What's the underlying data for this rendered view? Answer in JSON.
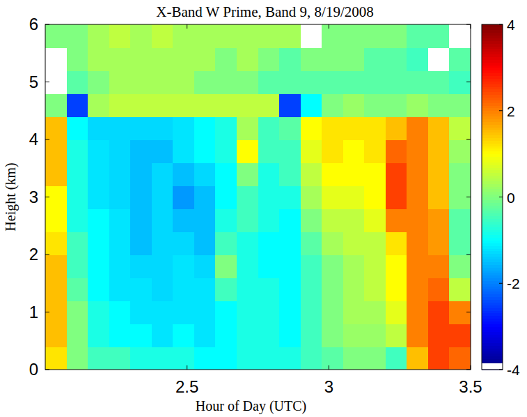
{
  "chart_data": {
    "type": "heatmap",
    "title": "X-Band W Prime, Band 9, 8/19/2008",
    "x_label": "Hour of Day (UTC)",
    "y_label": "Height (km)",
    "xlim": [
      2.0,
      3.5
    ],
    "ylim": [
      0,
      6
    ],
    "xticks": [
      2.5,
      3,
      3.5
    ],
    "yticks": [
      0,
      1,
      2,
      3,
      4,
      5,
      6
    ],
    "colorbar": {
      "range": [
        -4,
        4
      ],
      "ticks": [
        -4,
        -2,
        0,
        2,
        4
      ]
    },
    "cells": [
      [
        1.2,
        0,
        -0.5,
        -0.5,
        -0.8,
        -0.8,
        -0.8,
        -1,
        -1,
        -0.8,
        -0.8,
        -0.8,
        -0.5,
        -0.3,
        0,
        0,
        -0.5,
        1.5,
        2.5,
        2.2
      ],
      [
        1.5,
        0,
        -0.8,
        -1,
        -1,
        -1.2,
        -1,
        -1.2,
        -1,
        -0.8,
        -0.8,
        -1,
        -0.5,
        0,
        0.2,
        0.2,
        0.5,
        2,
        2.5,
        2.5
      ],
      [
        1.5,
        0,
        -0.8,
        -1,
        -1.2,
        -1.2,
        -1.2,
        -1.2,
        -1,
        -0.8,
        -0.8,
        -1,
        -0.5,
        0,
        0.3,
        0.3,
        0.8,
        2,
        2.5,
        2
      ],
      [
        1.5,
        -0.3,
        -1,
        -1.2,
        -1.2,
        -1.3,
        -1.2,
        -1.2,
        -0.5,
        -0.8,
        -0.8,
        -1,
        -0.5,
        0,
        0.3,
        0.5,
        1,
        2,
        2.2,
        0.5
      ],
      [
        1.5,
        -0.5,
        -1,
        -1.2,
        -1.3,
        -1.3,
        -1.2,
        -1.3,
        0,
        -0.8,
        -1,
        -1,
        -0.5,
        0,
        0.3,
        0.5,
        1,
        2,
        2,
        0
      ],
      [
        1.2,
        -0.5,
        -1,
        -1.2,
        -1.5,
        -1.3,
        -1.3,
        -1.5,
        -0.5,
        -0.8,
        -1,
        -1,
        -0.3,
        0.3,
        0.5,
        0.5,
        1.2,
        2,
        1.8,
        -0.3
      ],
      [
        1,
        -0.8,
        -1,
        -1.2,
        -1.5,
        -1.3,
        -1.5,
        -1.5,
        -0.8,
        -0.5,
        -0.8,
        -1,
        0,
        0.5,
        0.5,
        0.8,
        2,
        2,
        1.8,
        -0.3
      ],
      [
        1,
        -0.8,
        -1.2,
        -1.3,
        -1.5,
        -1.3,
        -1.8,
        -1.5,
        -1,
        -0.5,
        -0.8,
        -0.8,
        0.3,
        0.8,
        0.8,
        1,
        2.5,
        2,
        1.5,
        0
      ],
      [
        1.5,
        -0.8,
        -1.2,
        -1.3,
        -1.5,
        -1.3,
        -1.5,
        -1.3,
        -1,
        0,
        -0.8,
        -0.5,
        0.5,
        1,
        1,
        1,
        2.5,
        2,
        1.5,
        0
      ],
      [
        1.5,
        -0.8,
        -1.2,
        -1.3,
        -1.5,
        -1.5,
        -1.2,
        -1,
        -0.8,
        1,
        -0.5,
        -0.5,
        0.8,
        1.2,
        1,
        1.2,
        2.2,
        2,
        1.5,
        0.2
      ],
      [
        1.5,
        -1,
        -1.3,
        -1.3,
        -1.3,
        -1.3,
        -1.2,
        -1,
        -0.8,
        0.3,
        -0.5,
        -0.3,
        1,
        1.2,
        1.2,
        1.2,
        1.5,
        2,
        1.5,
        0.5
      ],
      [
        0,
        -2.5,
        0.3,
        0.5,
        0.5,
        0.5,
        0.5,
        0.5,
        0.5,
        0.5,
        0.5,
        -2.5,
        -1,
        0,
        0.2,
        0,
        0,
        0.2,
        0,
        0
      ],
      [
        null,
        -0.3,
        0,
        0.3,
        0.3,
        0.3,
        0.3,
        0,
        0,
        0,
        -0.3,
        -0.3,
        -0.3,
        -0.3,
        -0.3,
        -0.3,
        -0.3,
        -0.3,
        -0.3,
        -0.5
      ],
      [
        null,
        0,
        0.3,
        0.3,
        0.3,
        0.3,
        0.3,
        0.3,
        0,
        0.3,
        0,
        -0.3,
        0,
        0,
        0,
        -0.3,
        -0.3,
        -0.5,
        null,
        -0.3
      ],
      [
        0,
        0,
        0.3,
        0.5,
        0.3,
        0.5,
        0.3,
        0.3,
        0.3,
        0.3,
        0.3,
        0.3,
        null,
        0,
        0,
        0,
        0,
        -0.3,
        -0.3,
        null
      ]
    ]
  }
}
